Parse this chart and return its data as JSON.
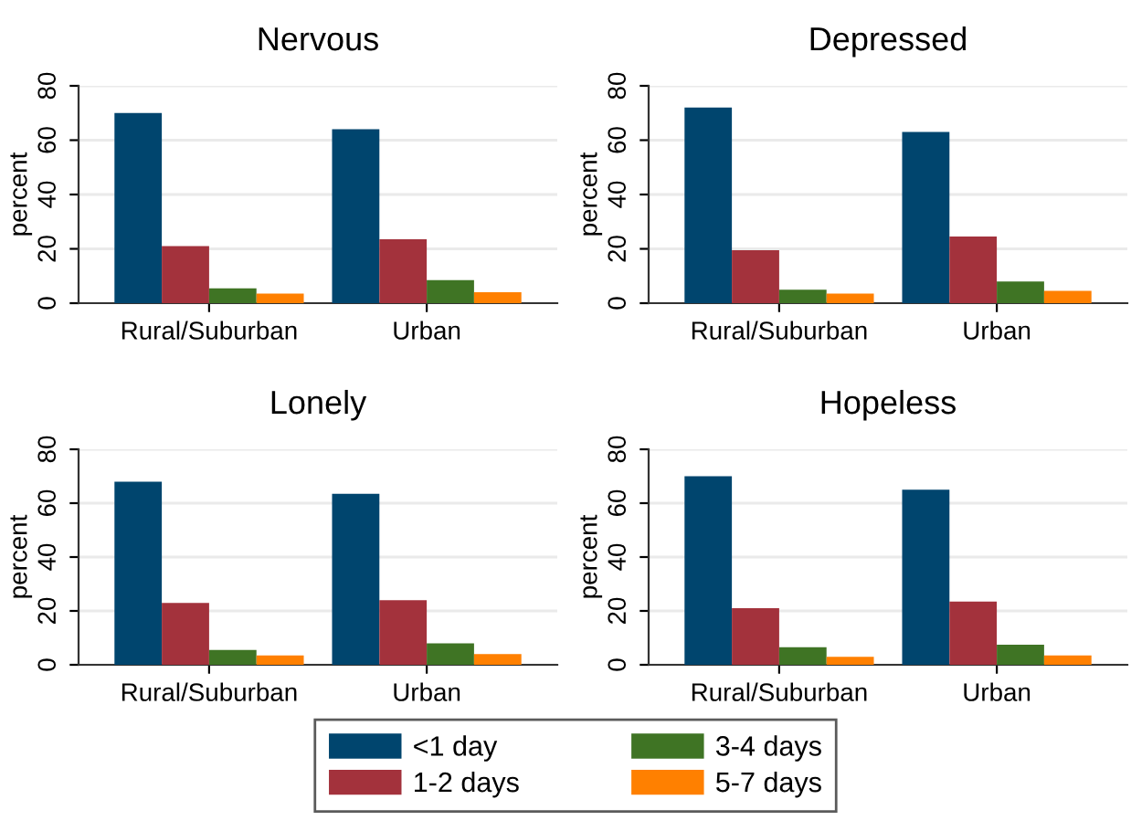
{
  "chart_data": [
    {
      "type": "bar",
      "title": "Nervous",
      "ylabel": "percent",
      "categories": [
        "Rural/Suburban",
        "Urban"
      ],
      "ylim": [
        0,
        80
      ],
      "yticks": [
        0,
        20,
        40,
        60,
        80
      ],
      "grid": "y",
      "series": [
        {
          "color": "#00456e",
          "values": [
            70,
            64
          ]
        },
        {
          "color": "#a3323c",
          "values": [
            21,
            23.5
          ]
        },
        {
          "color": "#3f7424",
          "values": [
            5.5,
            8.5
          ]
        },
        {
          "color": "#ff8000",
          "values": [
            3.5,
            4
          ]
        }
      ]
    },
    {
      "type": "bar",
      "title": "Depressed",
      "ylabel": "percent",
      "categories": [
        "Rural/Suburban",
        "Urban"
      ],
      "ylim": [
        0,
        80
      ],
      "yticks": [
        0,
        20,
        40,
        60,
        80
      ],
      "grid": "y",
      "series": [
        {
          "color": "#00456e",
          "values": [
            72,
            63
          ]
        },
        {
          "color": "#a3323c",
          "values": [
            19.5,
            24.5
          ]
        },
        {
          "color": "#3f7424",
          "values": [
            5,
            8
          ]
        },
        {
          "color": "#ff8000",
          "values": [
            3.5,
            4.5
          ]
        }
      ]
    },
    {
      "type": "bar",
      "title": "Lonely",
      "ylabel": "percent",
      "categories": [
        "Rural/Suburban",
        "Urban"
      ],
      "ylim": [
        0,
        80
      ],
      "yticks": [
        0,
        20,
        40,
        60,
        80
      ],
      "grid": "y",
      "legend": "bottom",
      "series": [
        {
          "name": "<1 day",
          "color": "#00456e",
          "values": [
            68,
            63.5
          ]
        },
        {
          "name": "1-2 days",
          "color": "#a3323c",
          "values": [
            23,
            24
          ]
        },
        {
          "name": "3-4 days",
          "color": "#3f7424",
          "values": [
            5.5,
            8
          ]
        },
        {
          "name": "5-7 days",
          "color": "#ff8000",
          "values": [
            3.5,
            4
          ]
        }
      ]
    },
    {
      "type": "bar",
      "title": "Hopeless",
      "ylabel": "percent",
      "categories": [
        "Rural/Suburban",
        "Urban"
      ],
      "ylim": [
        0,
        80
      ],
      "yticks": [
        0,
        20,
        40,
        60,
        80
      ],
      "grid": "y",
      "series": [
        {
          "color": "#00456e",
          "values": [
            70,
            65
          ]
        },
        {
          "color": "#a3323c",
          "values": [
            21,
            23.5
          ]
        },
        {
          "color": "#3f7424",
          "values": [
            6.5,
            7.5
          ]
        },
        {
          "color": "#ff8000",
          "values": [
            3,
            3.5
          ]
        }
      ]
    }
  ]
}
